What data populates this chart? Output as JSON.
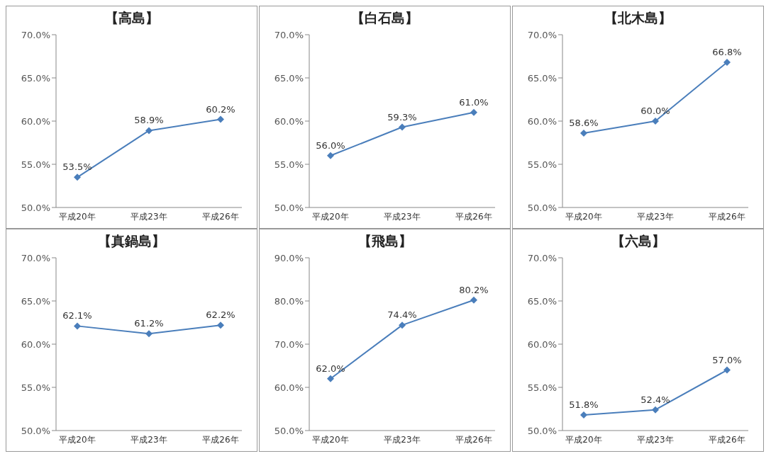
{
  "chart_data": [
    {
      "type": "line",
      "title": "【高島】",
      "categories": [
        "平成20年",
        "平成23年",
        "平成26年"
      ],
      "series": [
        {
          "color": "#4a7ebb",
          "values": [
            53.5,
            58.9,
            60.2
          ],
          "value_labels": [
            "53.5%",
            "58.9%",
            "60.2%"
          ]
        }
      ],
      "ylim": [
        50,
        70
      ],
      "yticks": [
        {
          "value": 50,
          "label": "50.0%"
        },
        {
          "value": 55,
          "label": "55.0%"
        },
        {
          "value": 60,
          "label": "60.0%"
        },
        {
          "value": 65,
          "label": "65.0%"
        },
        {
          "value": 70,
          "label": "70.0%"
        }
      ],
      "marker": "diamond",
      "grid": false
    },
    {
      "type": "line",
      "title": "【白石島】",
      "categories": [
        "平成20年",
        "平成23年",
        "平成26年"
      ],
      "series": [
        {
          "color": "#4a7ebb",
          "values": [
            56.0,
            59.3,
            61.0
          ],
          "value_labels": [
            "56.0%",
            "59.3%",
            "61.0%"
          ]
        }
      ],
      "ylim": [
        50,
        70
      ],
      "yticks": [
        {
          "value": 50,
          "label": "50.0%"
        },
        {
          "value": 55,
          "label": "55.0%"
        },
        {
          "value": 60,
          "label": "60.0%"
        },
        {
          "value": 65,
          "label": "65.0%"
        },
        {
          "value": 70,
          "label": "70.0%"
        }
      ],
      "marker": "diamond",
      "grid": false
    },
    {
      "type": "line",
      "title": "【北木島】",
      "categories": [
        "平成20年",
        "平成23年",
        "平成26年"
      ],
      "series": [
        {
          "color": "#4a7ebb",
          "values": [
            58.6,
            60.0,
            66.8
          ],
          "value_labels": [
            "58.6%",
            "60.0%",
            "66.8%"
          ]
        }
      ],
      "ylim": [
        50,
        70
      ],
      "yticks": [
        {
          "value": 50,
          "label": "50.0%"
        },
        {
          "value": 55,
          "label": "55.0%"
        },
        {
          "value": 60,
          "label": "60.0%"
        },
        {
          "value": 65,
          "label": "65.0%"
        },
        {
          "value": 70,
          "label": "70.0%"
        }
      ],
      "marker": "diamond",
      "grid": false
    },
    {
      "type": "line",
      "title": "【真鍋島】",
      "categories": [
        "平成20年",
        "平成23年",
        "平成26年"
      ],
      "series": [
        {
          "color": "#4a7ebb",
          "values": [
            62.1,
            61.2,
            62.2
          ],
          "value_labels": [
            "62.1%",
            "61.2%",
            "62.2%"
          ]
        }
      ],
      "ylim": [
        50,
        70
      ],
      "yticks": [
        {
          "value": 50,
          "label": "50.0%"
        },
        {
          "value": 55,
          "label": "55.0%"
        },
        {
          "value": 60,
          "label": "60.0%"
        },
        {
          "value": 65,
          "label": "65.0%"
        },
        {
          "value": 70,
          "label": "70.0%"
        }
      ],
      "marker": "diamond",
      "grid": false
    },
    {
      "type": "line",
      "title": "【飛島】",
      "categories": [
        "平成20年",
        "平成23年",
        "平成26年"
      ],
      "series": [
        {
          "color": "#4a7ebb",
          "values": [
            62.0,
            74.4,
            80.2
          ],
          "value_labels": [
            "62.0%",
            "74.4%",
            "80.2%"
          ]
        }
      ],
      "ylim": [
        50,
        90
      ],
      "yticks": [
        {
          "value": 50,
          "label": "50.0%"
        },
        {
          "value": 60,
          "label": "60.0%"
        },
        {
          "value": 70,
          "label": "70.0%"
        },
        {
          "value": 80,
          "label": "80.0%"
        },
        {
          "value": 90,
          "label": "90.0%"
        }
      ],
      "marker": "diamond",
      "grid": false
    },
    {
      "type": "line",
      "title": "【六島】",
      "categories": [
        "平成20年",
        "平成23年",
        "平成26年"
      ],
      "series": [
        {
          "color": "#4a7ebb",
          "values": [
            51.8,
            52.4,
            57.0
          ],
          "value_labels": [
            "51.8%",
            "52.4%",
            "57.0%"
          ]
        }
      ],
      "ylim": [
        50,
        70
      ],
      "yticks": [
        {
          "value": 50,
          "label": "50.0%"
        },
        {
          "value": 55,
          "label": "55.0%"
        },
        {
          "value": 60,
          "label": "60.0%"
        },
        {
          "value": 65,
          "label": "65.0%"
        },
        {
          "value": 70,
          "label": "70.0%"
        }
      ],
      "marker": "diamond",
      "grid": false
    }
  ]
}
